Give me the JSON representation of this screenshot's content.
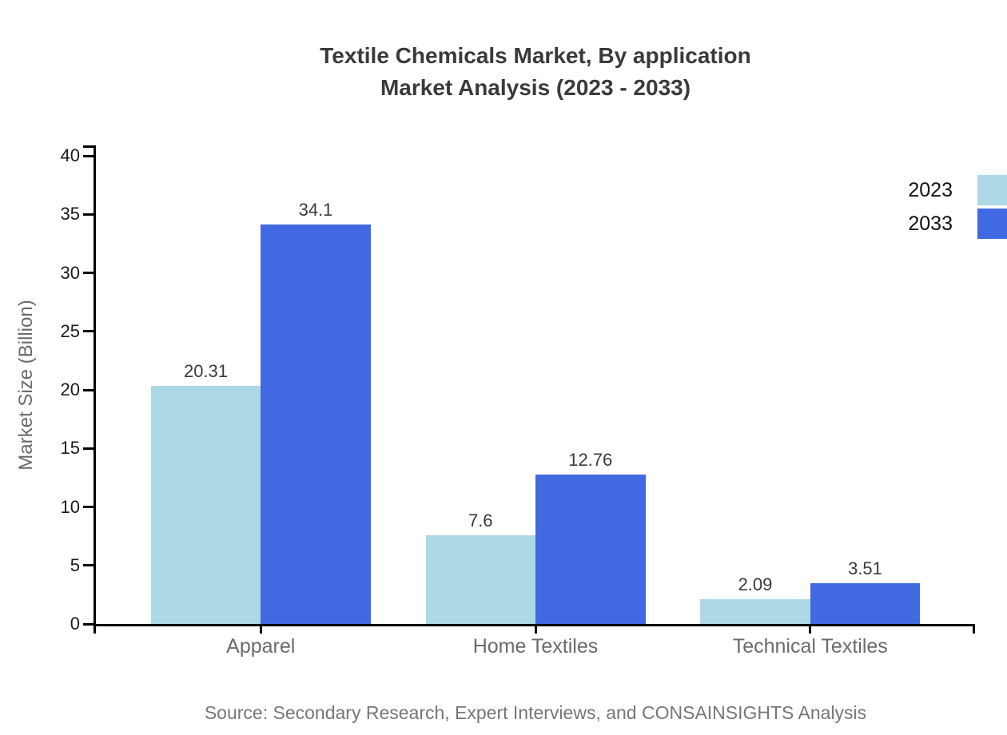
{
  "title": {
    "line1": "Textile Chemicals Market, By application",
    "line2": "Market Analysis (2023 - 2033)"
  },
  "source": "Source: Secondary Research, Expert Interviews, and CONSAINSIGHTS Analysis",
  "colors": {
    "series_2023": "#ADD8E6",
    "series_2033": "#4169E1",
    "axis": "#000000",
    "title_text": "#3a3a3a",
    "muted_text": "#6b6b6b",
    "source_text": "#777777"
  },
  "chart_data": {
    "type": "bar",
    "categories": [
      "Apparel",
      "Home Textiles",
      "Technical Textiles"
    ],
    "series": [
      {
        "name": "2023",
        "color": "#ADD8E6",
        "values": [
          20.31,
          7.6,
          2.09
        ]
      },
      {
        "name": "2033",
        "color": "#4169E1",
        "values": [
          34.1,
          12.76,
          3.51
        ]
      }
    ],
    "value_labels": [
      [
        "20.31",
        "7.6",
        "2.09"
      ],
      [
        "34.1",
        "12.76",
        "3.51"
      ]
    ],
    "title": "Textile Chemicals Market, By application Market Analysis (2023 - 2033)",
    "xlabel": "",
    "ylabel": "Market Size (Billion)",
    "ylim": [
      0,
      40
    ],
    "yticks": [
      0,
      5,
      10,
      15,
      20,
      25,
      30,
      35,
      40
    ],
    "grid": false,
    "legend_position": "top-right",
    "bar_value_labels": true
  }
}
